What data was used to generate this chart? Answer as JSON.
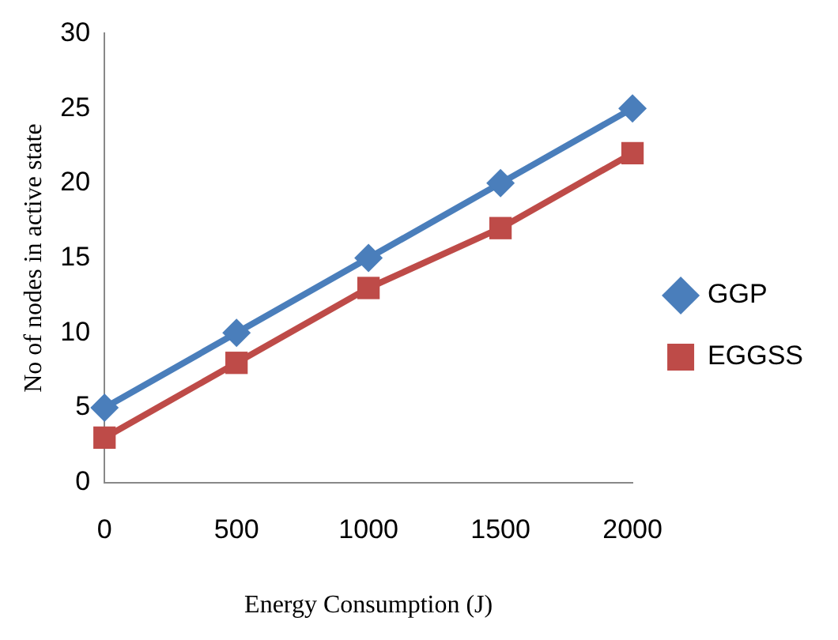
{
  "chart_data": {
    "type": "line",
    "xlabel": "Energy Consumption (J)",
    "ylabel": "No of nodes in active state",
    "categories": [
      "0",
      "500",
      "1000",
      "1500",
      "2000"
    ],
    "series": [
      {
        "name": "GGP",
        "color": "#4a7ebb",
        "marker": "diamond",
        "values": [
          5,
          10,
          15,
          20,
          25
        ]
      },
      {
        "name": "EGGSS",
        "color": "#be4b48",
        "marker": "square",
        "values": [
          3,
          8,
          13,
          17,
          22
        ]
      }
    ],
    "ylim": [
      0,
      30
    ],
    "yticks": [
      0,
      5,
      10,
      15,
      20,
      25,
      30
    ],
    "grid": false,
    "legend": "right",
    "line_style": "solid"
  }
}
